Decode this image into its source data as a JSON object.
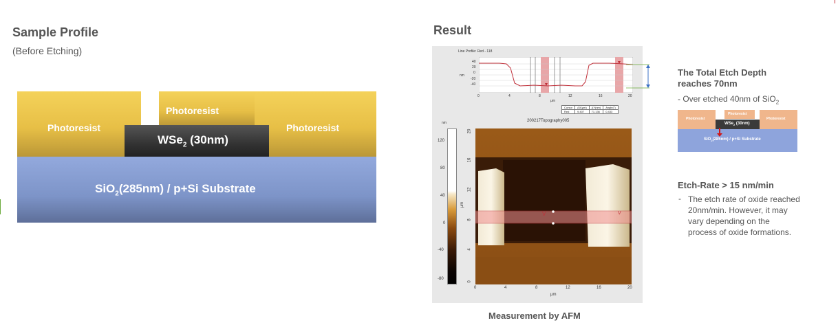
{
  "left": {
    "title": "Sample Profile",
    "subtitle": "(Before Etching)",
    "photoresist_label": "Photoresist",
    "wse2_label": {
      "main": "WSe",
      "sub": "2",
      "rest": " (30nm)"
    },
    "substrate_label": {
      "main": "SiO",
      "sub": "2",
      "rest": "(285nm) / p+Si Substrate"
    }
  },
  "result": {
    "title": "Result",
    "caption": "Measurement by AFM"
  },
  "afm": {
    "profile_title": "Line Profile: Red  -  118",
    "profile_unit_y": "nm",
    "profile_y_ticks": [
      "40",
      "20",
      "0",
      "-20",
      "-40"
    ],
    "profile_x_ticks": [
      "0",
      "4",
      "8",
      "12",
      "16",
      "20"
    ],
    "profile_x_unit": "μm",
    "table_headers": [
      "Cursor",
      "ΔX(μm)",
      "ΔY(nm)",
      "Angle(°)"
    ],
    "table_row": [
      "Red",
      "9.407",
      "71.136",
      "0.433"
    ],
    "image_title": "200217Topography005",
    "colorbar_unit": "nm",
    "colorbar_ticks": [
      "120",
      "80",
      "40",
      "0",
      "-40",
      "-80"
    ],
    "image_y_ticks": [
      "20",
      "16",
      "12",
      "8",
      "4",
      "0"
    ],
    "image_x_ticks": [
      "0",
      "4",
      "8",
      "12",
      "16",
      "20"
    ],
    "image_axis_unit": "μm",
    "marker_label": "V"
  },
  "right": {
    "etch_depth_title_line1": "The Total Etch Depth",
    "etch_depth_title_line2": "reaches 70nm",
    "over_etched": {
      "main": "- Over etched 40nm of SiO",
      "sub": "2"
    },
    "mini_diagram": {
      "photoresist": "Photoresist",
      "wse2": {
        "main": "WSe",
        "sub": "2",
        "rest": " (30nm)"
      },
      "substrate": {
        "main": "SiO",
        "sub": "2",
        "rest": "(285nm) / p+Si Substrate"
      }
    },
    "etch_rate_title": "Etch-Rate > 15 nm/min",
    "etch_rate_bullet": "-",
    "etch_rate_lines": [
      "The etch rate of oxide reached",
      "20nm/min. However, it may",
      "vary depending on the",
      "process of oxide formations."
    ]
  },
  "colors": {
    "photoresist": "#e7bf46",
    "wse2": "#3c3c3c",
    "substrate": "#8aa0d6",
    "profile_line": "#c0303a",
    "profile_highlight": "#e8a6a8",
    "guide_line": "#6aaa3a",
    "arrow": "#3a6fc4"
  }
}
